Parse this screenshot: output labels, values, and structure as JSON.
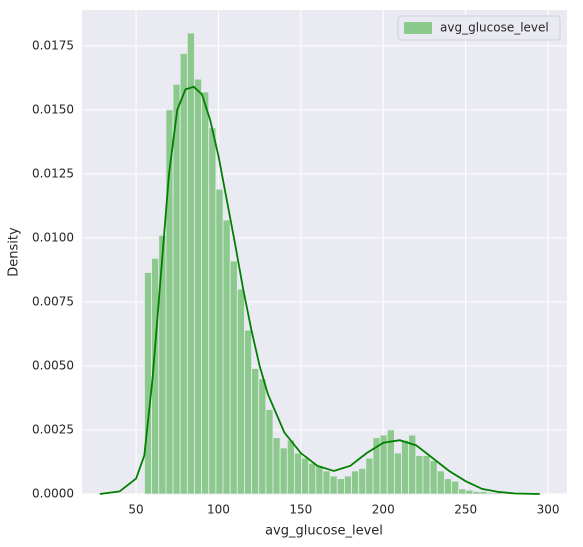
{
  "chart_data": {
    "type": "histogram",
    "xlabel": "avg_glucose_level",
    "ylabel": "Density",
    "xlim": [
      17.2,
      311.5
    ],
    "ylim": [
      0,
      0.0189
    ],
    "xticks": [
      50,
      100,
      150,
      200,
      250,
      300
    ],
    "yticks": [
      {
        "value": 0,
        "label": "0.0000"
      },
      {
        "value": 0.0025,
        "label": "0.0025"
      },
      {
        "value": 0.005,
        "label": "0.0050"
      },
      {
        "value": 0.0075,
        "label": "0.0075"
      },
      {
        "value": 0.01,
        "label": "0.0100"
      },
      {
        "value": 0.0125,
        "label": "0.0125"
      },
      {
        "value": 0.015,
        "label": "0.0150"
      },
      {
        "value": 0.0175,
        "label": "0.0175"
      }
    ],
    "grid": true,
    "legend": "upper right",
    "bins": [
      55.12,
      59.45,
      63.78,
      68.12,
      72.45,
      76.78,
      81.11,
      85.45,
      89.78,
      94.11,
      98.44,
      102.78,
      107.11,
      111.44,
      115.77,
      120.11,
      124.44,
      128.77,
      133.1,
      137.44,
      141.77,
      146.1,
      150.43,
      154.77,
      159.1,
      163.43,
      167.76,
      172.09,
      176.43,
      180.76,
      185.09,
      189.42,
      193.76,
      198.09,
      202.42,
      206.75,
      211.09,
      215.42,
      219.75,
      224.08,
      228.42,
      232.75,
      237.08,
      241.41,
      245.75,
      250.08,
      254.41,
      258.74,
      263.08,
      267.41,
      271.74
    ],
    "series": [
      {
        "name": "avg_glucose_level",
        "color": "#8cc98c",
        "values": [
          0.00865,
          0.0092,
          0.0101,
          0.015,
          0.016,
          0.0172,
          0.018,
          0.0162,
          0.0157,
          0.0143,
          0.0119,
          0.0107,
          0.0091,
          0.008,
          0.0064,
          0.0049,
          0.0045,
          0.0033,
          0.0022,
          0.0018,
          0.0021,
          0.0016,
          0.0014,
          0.0012,
          0.0011,
          0.0009,
          0.0007,
          0.0006,
          0.0007,
          0.0009,
          0.001,
          0.0014,
          0.0022,
          0.0023,
          0.0025,
          0.0016,
          0.0021,
          0.0023,
          0.0015,
          0.0015,
          0.0013,
          0.0009,
          0.0006,
          0.0005,
          0.0002,
          0.00015,
          0.0001,
          0.0001,
          5e-05,
          5e-05
        ]
      }
    ],
    "kde": {
      "color": "#008000",
      "x": [
        28,
        40,
        50,
        55,
        60,
        65,
        70,
        75,
        80,
        85,
        90,
        95,
        100,
        105,
        110,
        115,
        120,
        125,
        130,
        140,
        150,
        160,
        170,
        180,
        190,
        200,
        210,
        220,
        230,
        240,
        250,
        260,
        270,
        280,
        295
      ],
      "y": [
        0,
        0.0001,
        0.0006,
        0.0015,
        0.0045,
        0.0085,
        0.0125,
        0.015,
        0.0158,
        0.0159,
        0.0156,
        0.0146,
        0.0132,
        0.0115,
        0.0098,
        0.008,
        0.0064,
        0.005,
        0.0039,
        0.0024,
        0.0016,
        0.0011,
        0.0009,
        0.0011,
        0.0016,
        0.002,
        0.0021,
        0.0019,
        0.0014,
        0.0009,
        0.0005,
        0.0002,
        8e-05,
        2e-05,
        0
      ]
    }
  }
}
